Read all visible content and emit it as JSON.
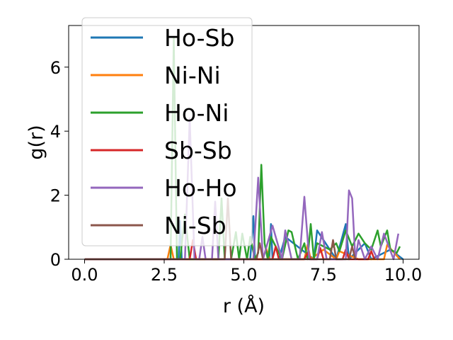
{
  "chart_data": {
    "type": "line",
    "title": "",
    "xlabel": "r (Å)",
    "ylabel": "g(r)",
    "xlim": [
      -0.5,
      10.5
    ],
    "ylim": [
      0,
      7.3
    ],
    "xticks": [
      0.0,
      2.5,
      5.0,
      7.5,
      10.0
    ],
    "xtick_labels": [
      "0.0",
      "2.5",
      "5.0",
      "7.5",
      "10.0"
    ],
    "yticks": [
      0,
      2,
      4,
      6
    ],
    "ytick_labels": [
      "0",
      "2",
      "4",
      "6"
    ],
    "grid": false,
    "legend_position": "upper-left",
    "series": [
      {
        "name": "Ho-Sb",
        "color": "#1f77b4",
        "x": [
          0,
          2.95,
          3.0,
          3.05,
          4.0,
          5.2,
          5.3,
          5.35,
          5.6,
          5.8,
          5.85,
          5.9,
          6.1,
          6.3,
          7.2,
          7.3,
          7.9,
          8.2,
          8.3,
          8.8,
          9.0,
          9.6,
          10.0
        ],
        "y": [
          0,
          0,
          1.2,
          0,
          0,
          0,
          1.35,
          0,
          0,
          0,
          1.1,
          0,
          0,
          0.7,
          0,
          0.9,
          0,
          1.1,
          0,
          0.5,
          0,
          0.3,
          0
        ]
      },
      {
        "name": "Ni-Ni",
        "color": "#ff7f0e",
        "x": [
          0,
          2.6,
          2.7,
          2.8,
          4.0,
          5.6,
          5.7,
          5.8,
          6.5,
          6.9,
          7.0,
          7.1,
          7.5,
          7.9,
          8.0,
          8.6,
          9.4,
          9.5,
          9.9
        ],
        "y": [
          0,
          0,
          0.45,
          0,
          0,
          0,
          0.35,
          0,
          0,
          0,
          0.45,
          0,
          0.3,
          0,
          0.25,
          0,
          0,
          0.45,
          0
        ]
      },
      {
        "name": "Ho-Ni",
        "color": "#2ca02c",
        "x": [
          0,
          2.7,
          2.8,
          2.9,
          3.0,
          3.15,
          3.3,
          4.2,
          4.3,
          4.4,
          4.6,
          4.75,
          4.85,
          4.95,
          5.1,
          5.2,
          5.35,
          5.45,
          5.55,
          5.65,
          5.75,
          5.85,
          6.0,
          6.2,
          6.4,
          6.5,
          6.7,
          6.9,
          7.0,
          7.1,
          7.2,
          7.3,
          7.5,
          7.7,
          7.9,
          8.0,
          8.2,
          8.4,
          8.6,
          8.8,
          9.0,
          9.2,
          9.3,
          9.5,
          9.6,
          9.8,
          9.9
        ],
        "y": [
          0,
          0,
          6.9,
          0,
          0,
          1.4,
          0,
          0,
          1.9,
          0,
          0,
          0.85,
          0,
          0.8,
          0,
          0.7,
          0,
          0.2,
          2.95,
          0.5,
          0,
          0.7,
          0.4,
          0,
          0.9,
          0.85,
          0,
          0.5,
          0,
          1.1,
          0,
          0.5,
          0.4,
          0.3,
          0.5,
          0.25,
          0.9,
          0.4,
          0.8,
          0.5,
          0.3,
          0.9,
          0.4,
          0.9,
          0.3,
          0.2,
          0.4
        ]
      },
      {
        "name": "Sb-Sb",
        "color": "#d62728",
        "x": [
          0,
          3.3,
          3.4,
          3.5,
          5.9,
          6.0,
          6.1,
          6.9,
          7.0,
          7.1,
          7.3,
          7.4,
          7.5,
          8.1,
          8.2,
          8.3,
          8.9,
          9.0,
          9.1
        ],
        "y": [
          0,
          0,
          0.6,
          0,
          0,
          0.4,
          0,
          0,
          0.2,
          0,
          0,
          0.35,
          0,
          0,
          0.3,
          0,
          0,
          0.25,
          0
        ]
      },
      {
        "name": "Ho-Ho",
        "color": "#9467bd",
        "x": [
          0,
          3.15,
          3.3,
          3.45,
          3.6,
          3.7,
          3.8,
          4.0,
          4.1,
          4.2,
          5.3,
          5.45,
          5.6,
          5.9,
          6.2,
          6.3,
          6.5,
          6.75,
          6.9,
          7.05,
          7.3,
          7.45,
          7.6,
          8.2,
          8.3,
          8.4,
          8.5,
          8.6,
          8.8,
          9.0,
          9.2,
          9.4,
          9.7,
          9.85
        ],
        "y": [
          0,
          0,
          4.4,
          0,
          0,
          0.7,
          0,
          0,
          1.8,
          0,
          0,
          2.55,
          0,
          1.05,
          0,
          0.9,
          0,
          0,
          1.95,
          0,
          0,
          0.85,
          0,
          0,
          2.15,
          1.9,
          0,
          0.6,
          0,
          0.4,
          0,
          0.8,
          0,
          0.8
        ]
      },
      {
        "name": "Ni-Sb",
        "color": "#8c564b",
        "x": [
          0,
          4.4,
          4.5,
          4.6,
          5.4,
          5.5,
          5.6,
          7.7,
          7.8,
          7.9,
          8.3,
          8.4,
          8.5
        ],
        "y": [
          0,
          0,
          1.9,
          0,
          0,
          0.5,
          0,
          0,
          0.6,
          0,
          0,
          0.4,
          0
        ]
      }
    ]
  }
}
